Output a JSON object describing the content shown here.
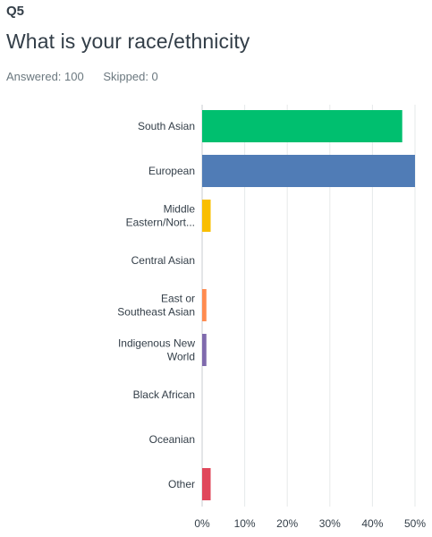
{
  "question": {
    "number": "Q5",
    "title": "What is your race/ethnicity",
    "answered": "Answered: 100",
    "skipped": "Skipped: 0"
  },
  "chart_data": {
    "type": "bar",
    "orientation": "horizontal",
    "categories": [
      [
        "South Asian"
      ],
      [
        "European"
      ],
      [
        "Middle",
        "Eastern/Nort..."
      ],
      [
        "Central Asian"
      ],
      [
        "East or",
        "Southeast Asian"
      ],
      [
        "Indigenous New",
        "World"
      ],
      [
        "Black African"
      ],
      [
        "Oceanian"
      ],
      [
        "Other"
      ]
    ],
    "values": [
      47,
      50,
      2,
      0,
      1,
      1,
      0,
      0,
      2
    ],
    "colors": [
      "#00bf6f",
      "#507cb6",
      "#f9be00",
      "#6bc8cd",
      "#ff8b4f",
      "#7f6aad",
      "#585858",
      "#d25f90",
      "#e0475b"
    ],
    "xlim": [
      0,
      50
    ],
    "ticks": [
      "0%",
      "10%",
      "20%",
      "30%",
      "40%",
      "50%"
    ],
    "grid": true
  }
}
